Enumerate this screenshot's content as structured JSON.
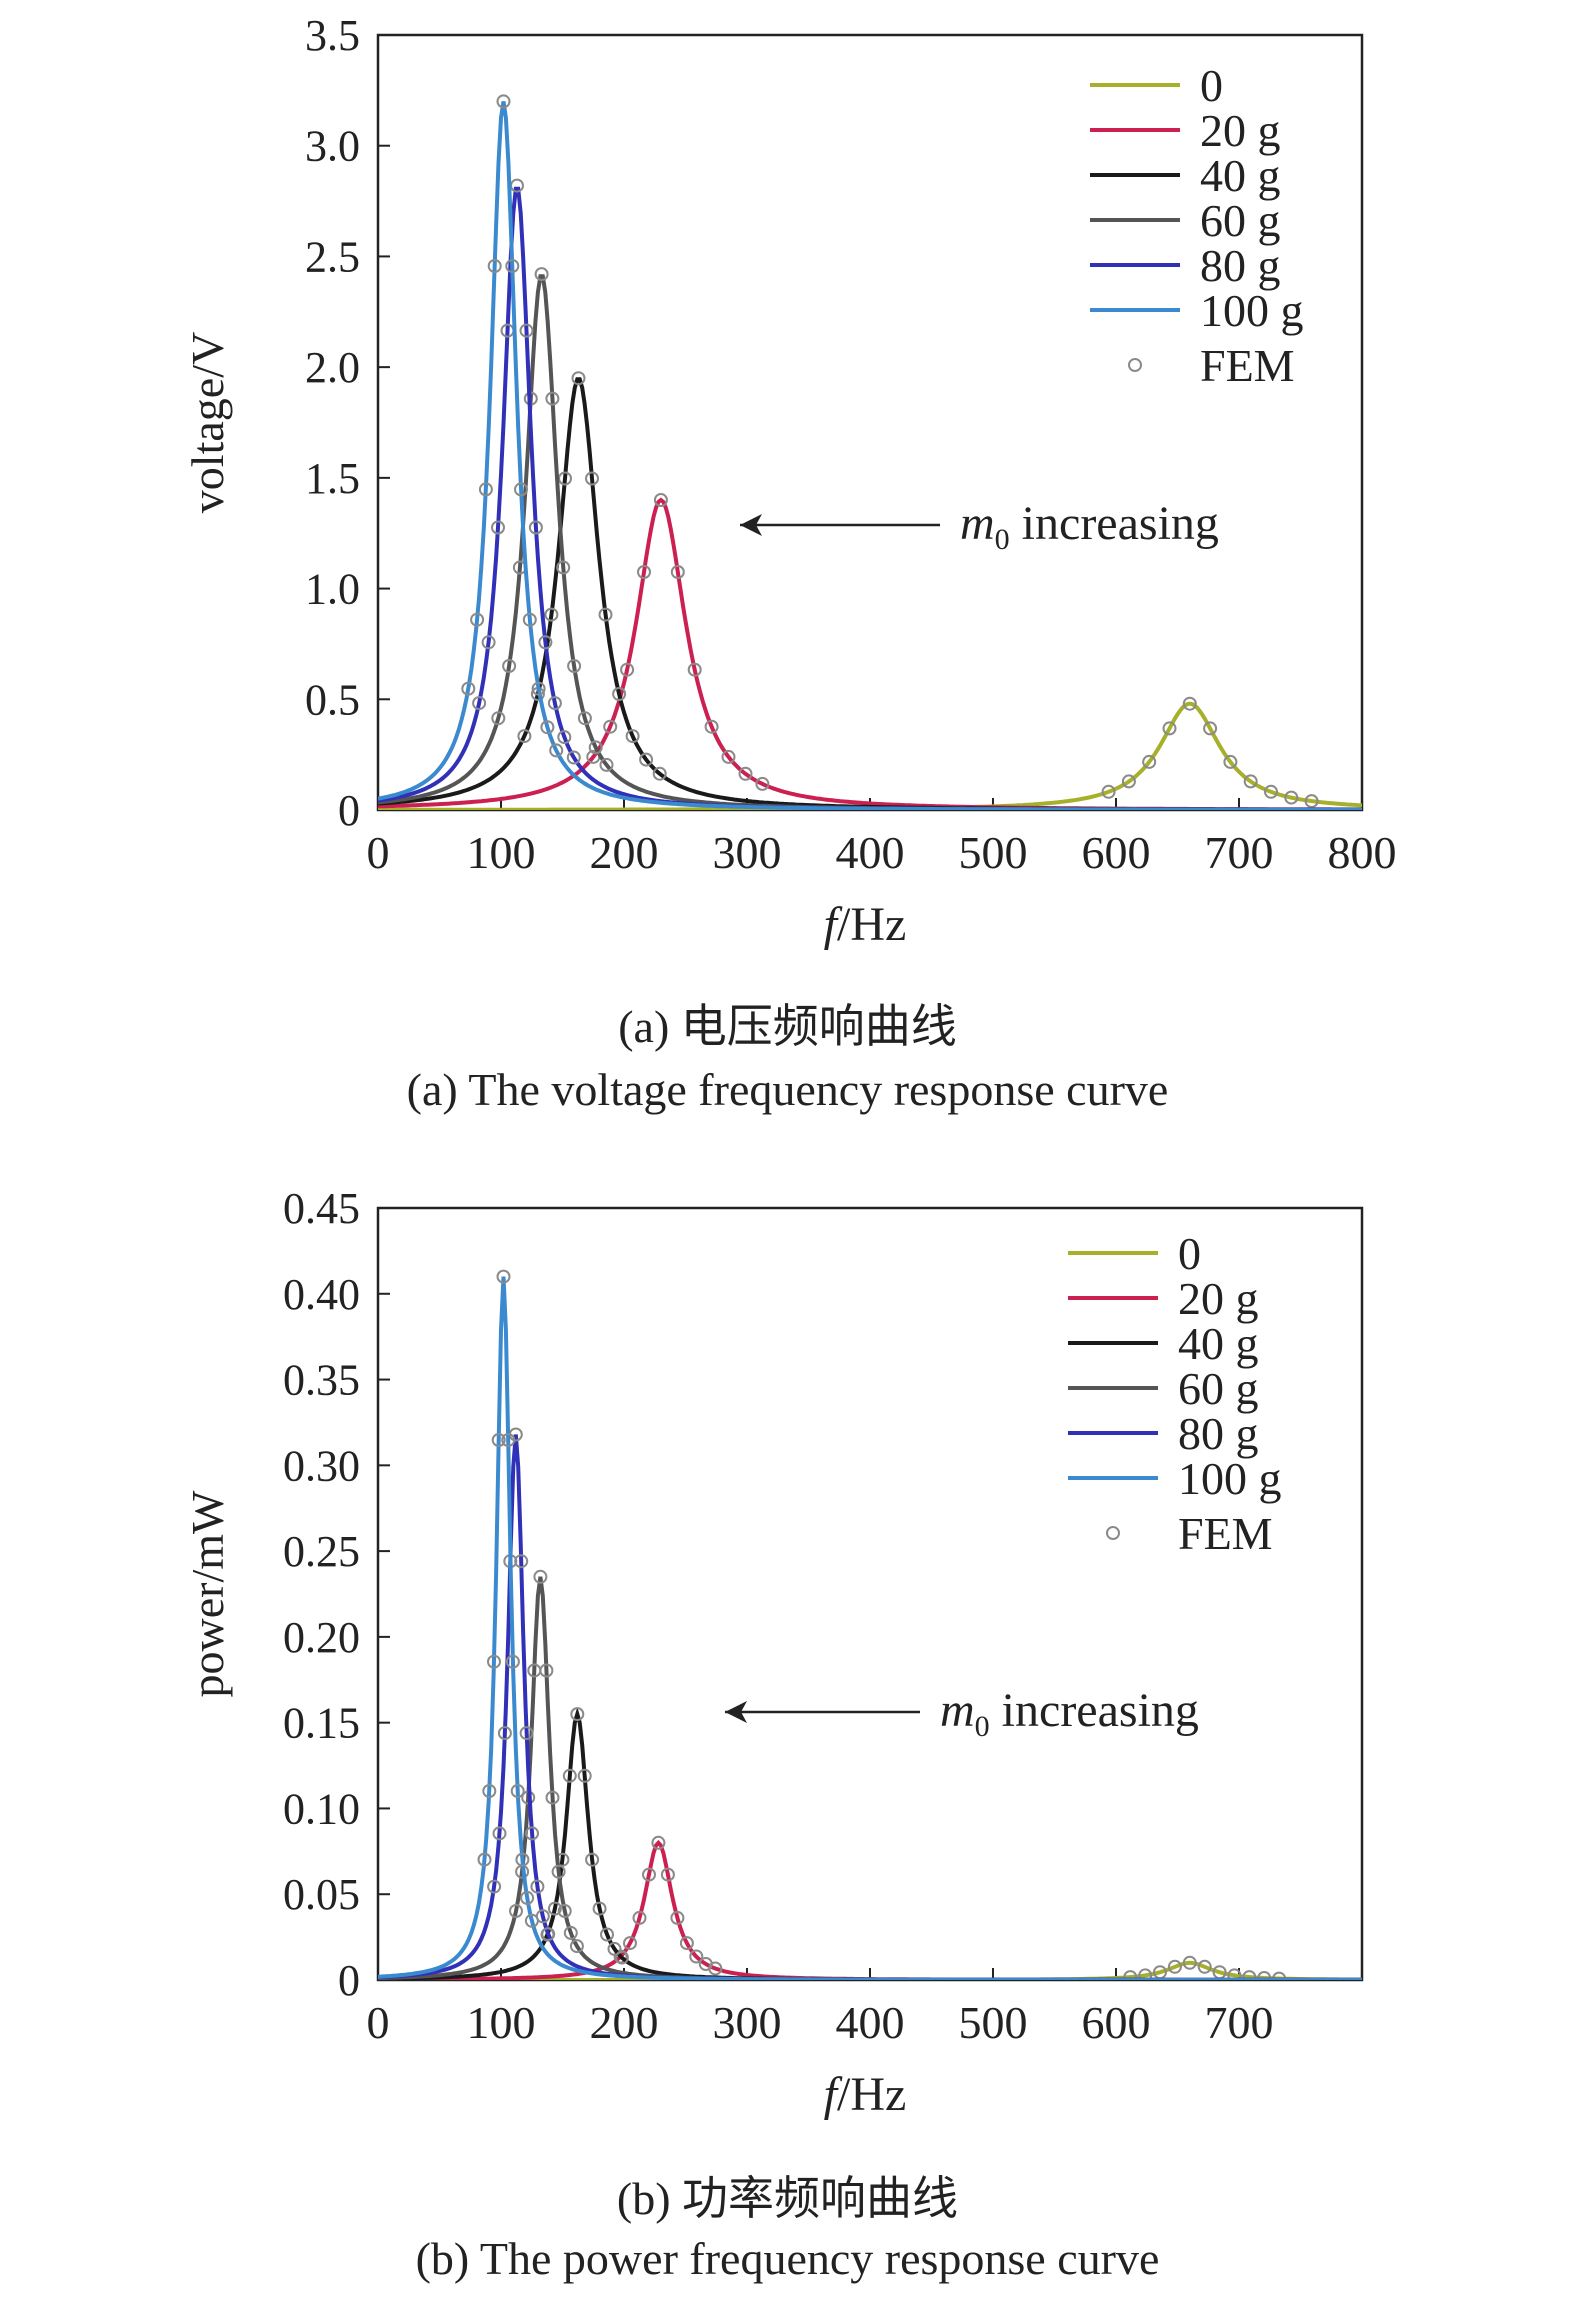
{
  "chart_data": [
    {
      "type": "line",
      "ylabel": "voltage/V",
      "xlabel_italic": "f",
      "xlabel_rest": "/Hz",
      "xlim": [
        0,
        800
      ],
      "ylim": [
        0,
        3.5
      ],
      "x_ticks": [
        "0",
        "100",
        "200",
        "300",
        "400",
        "500",
        "600",
        "700",
        "800"
      ],
      "y_ticks": [
        "0",
        "0.5",
        "1.0",
        "1.5",
        "2.0",
        "2.5",
        "3.0",
        "3.5"
      ],
      "grid": false,
      "legend": "top-right",
      "series": [
        {
          "name": "0",
          "color": "#a7b02a",
          "peak_x": 660,
          "peak_y": 0.48,
          "half_width": 30
        },
        {
          "name": "20 g",
          "color": "#cc2050",
          "peak_x": 230,
          "peak_y": 1.4,
          "half_width": 25
        },
        {
          "name": "40 g",
          "color": "#1a1a1a",
          "peak_x": 163,
          "peak_y": 1.95,
          "half_width": 20
        },
        {
          "name": "60 g",
          "color": "#555555",
          "peak_x": 133,
          "peak_y": 2.42,
          "half_width": 16
        },
        {
          "name": "80 g",
          "color": "#3030b8",
          "peak_x": 113,
          "peak_y": 2.82,
          "half_width": 14
        },
        {
          "name": "100 g",
          "color": "#3b8ad0",
          "peak_x": 102,
          "peak_y": 3.2,
          "half_width": 13
        }
      ],
      "fem_label": "FEM",
      "annotation": {
        "text_italic": "m",
        "subscript": "0",
        "text_rest": " increasing",
        "arrow": "left"
      }
    },
    {
      "type": "line",
      "ylabel": "power/mW",
      "xlabel_italic": "f",
      "xlabel_rest": "/Hz",
      "xlim": [
        0,
        800
      ],
      "ylim": [
        0,
        0.45
      ],
      "x_ticks": [
        "0",
        "100",
        "200",
        "300",
        "400",
        "500",
        "600",
        "700"
      ],
      "y_ticks": [
        "0",
        "0.05",
        "0.10",
        "0.15",
        "0.20",
        "0.25",
        "0.30",
        "0.35",
        "0.40",
        "0.45"
      ],
      "grid": false,
      "legend": "top-right",
      "series": [
        {
          "name": "0",
          "color": "#a7b02a",
          "peak_x": 660,
          "peak_y": 0.01,
          "half_width": 22
        },
        {
          "name": "20 g",
          "color": "#cc2050",
          "peak_x": 228,
          "peak_y": 0.08,
          "half_width": 14
        },
        {
          "name": "40 g",
          "color": "#1a1a1a",
          "peak_x": 162,
          "peak_y": 0.155,
          "half_width": 11
        },
        {
          "name": "60 g",
          "color": "#555555",
          "peak_x": 132,
          "peak_y": 0.235,
          "half_width": 9
        },
        {
          "name": "80 g",
          "color": "#3030b8",
          "peak_x": 112,
          "peak_y": 0.318,
          "half_width": 8
        },
        {
          "name": "100 g",
          "color": "#3b8ad0",
          "peak_x": 102,
          "peak_y": 0.41,
          "half_width": 7
        }
      ],
      "fem_label": "FEM",
      "annotation": {
        "text_italic": "m",
        "subscript": "0",
        "text_rest": " increasing",
        "arrow": "left"
      }
    }
  ],
  "captions": {
    "a_cn": "(a) 电压频响曲线",
    "a_en": "(a) The voltage frequency response curve",
    "b_cn": "(b) 功率频响曲线",
    "b_en": "(b) The power frequency response curve"
  }
}
